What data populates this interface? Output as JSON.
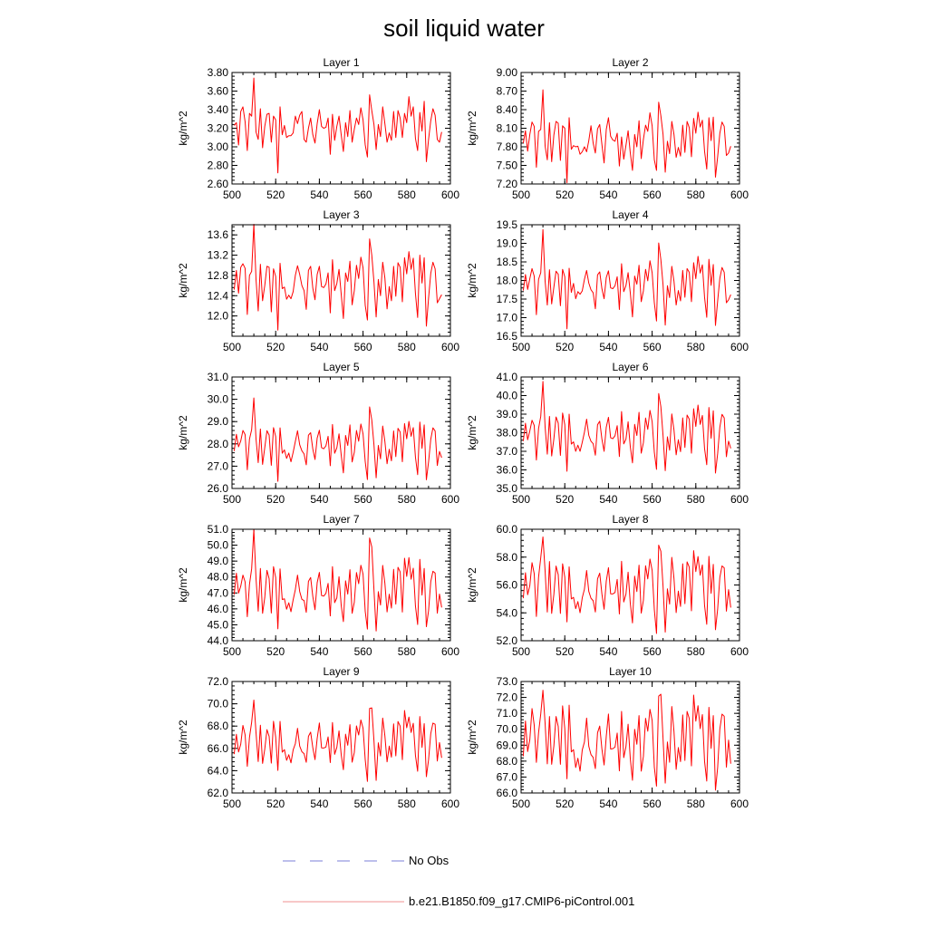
{
  "figure": {
    "title": "soil liquid water",
    "line_color": "#ff0000",
    "axis_color": "#000000"
  },
  "legend": {
    "items": [
      {
        "label": "No Obs",
        "color": "#7b7fd9",
        "style": "dashed"
      },
      {
        "label": "b.e21.B1850.f09_g17.CMIP6-piControl.001",
        "color": "#f09090",
        "style": "solid"
      }
    ]
  },
  "chart_data": [
    {
      "type": "line",
      "title": "Layer 1",
      "xlabel": "",
      "ylabel": "kg/m^2",
      "xlim": [
        500,
        600
      ],
      "ylim": [
        2.6,
        3.8
      ],
      "xticks": [
        "500",
        "520",
        "540",
        "560",
        "580",
        "600"
      ],
      "yticks": [
        "2.60",
        "2.80",
        "3.00",
        "3.20",
        "3.40",
        "3.60",
        "3.80"
      ],
      "x_start": 501,
      "x_step": 1,
      "values": [
        3.23,
        3.26,
        3.02,
        3.38,
        3.43,
        3.27,
        2.96,
        3.36,
        3.33,
        3.74,
        3.16,
        3.08,
        3.41,
        2.99,
        3.22,
        3.35,
        3.36,
        3.05,
        3.33,
        3.29,
        2.72,
        3.43,
        3.13,
        3.23,
        3.1,
        3.12,
        3.12,
        3.15,
        3.33,
        3.25,
        3.34,
        3.38,
        3.08,
        3.05,
        3.2,
        3.31,
        3.13,
        3.04,
        3.25,
        3.4,
        3.22,
        3.2,
        3.21,
        3.31,
        2.92,
        3.35,
        3.07,
        3.22,
        3.33,
        3.13,
        2.95,
        3.26,
        3.11,
        3.39,
        3.05,
        3.19,
        3.31,
        3.24,
        3.42,
        3.29,
        3.02,
        2.89,
        3.56,
        3.39,
        3.24,
        2.97,
        3.24,
        3.11,
        3.43,
        3.25,
        3.05,
        3.15,
        3.07,
        3.38,
        3.1,
        3.39,
        3.31,
        3.1,
        3.36,
        3.26,
        3.54,
        3.33,
        3.43,
        3.09,
        2.96,
        3.37,
        3.17,
        3.49,
        2.84,
        3.08,
        3.28,
        3.41,
        3.34,
        3.08,
        3.05,
        3.16
      ]
    },
    {
      "type": "line",
      "title": "Layer 2",
      "xlabel": "",
      "ylabel": "kg/m^2",
      "xlim": [
        500,
        600
      ],
      "ylim": [
        7.2,
        9.0
      ],
      "xticks": [
        "500",
        "520",
        "540",
        "560",
        "580",
        "600"
      ],
      "yticks": [
        "7.20",
        "7.50",
        "7.80",
        "8.10",
        "8.40",
        "8.70",
        "9.00"
      ],
      "x_start": 501,
      "x_step": 1,
      "values": [
        7.86,
        8.06,
        7.73,
        8.0,
        8.2,
        8.13,
        7.47,
        8.05,
        8.08,
        8.72,
        7.81,
        7.59,
        8.19,
        7.56,
        7.99,
        8.21,
        8.18,
        7.58,
        8.14,
        8.1,
        7.22,
        8.27,
        7.76,
        7.82,
        7.8,
        7.81,
        7.68,
        7.72,
        7.8,
        7.72,
        7.9,
        8.14,
        7.86,
        7.7,
        8.09,
        8.16,
        7.84,
        7.54,
        8.08,
        8.27,
        7.97,
        7.91,
        7.89,
        8.02,
        7.49,
        7.96,
        7.6,
        7.82,
        8.06,
        7.7,
        7.42,
        8.0,
        7.8,
        8.22,
        7.61,
        7.92,
        8.15,
        8.05,
        8.35,
        8.14,
        7.59,
        7.42,
        8.52,
        8.3,
        8.0,
        7.39,
        7.89,
        7.69,
        8.21,
        8.0,
        7.63,
        7.79,
        7.65,
        8.15,
        7.71,
        8.21,
        8.11,
        7.64,
        8.26,
        8.02,
        8.36,
        8.12,
        8.23,
        7.73,
        7.44,
        8.27,
        7.9,
        8.28,
        7.31,
        7.64,
        8.02,
        8.2,
        8.13,
        7.66,
        7.7,
        7.81
      ]
    },
    {
      "type": "line",
      "title": "Layer 3",
      "xlabel": "",
      "ylabel": "kg/m^2",
      "xlim": [
        500,
        600
      ],
      "ylim": [
        11.6,
        13.8
      ],
      "xticks": [
        "500",
        "520",
        "540",
        "560",
        "580",
        "600"
      ],
      "yticks": [
        "12.0",
        "12.4",
        "12.8",
        "13.2",
        "13.6"
      ],
      "x_start": 501,
      "x_step": 1,
      "values": [
        12.52,
        12.9,
        12.45,
        12.96,
        13.03,
        12.94,
        12.03,
        12.8,
        12.88,
        13.81,
        12.72,
        12.1,
        13.02,
        12.3,
        12.6,
        12.98,
        12.96,
        12.08,
        12.93,
        12.78,
        11.72,
        13.04,
        12.54,
        12.57,
        12.33,
        12.41,
        12.34,
        12.48,
        12.8,
        12.99,
        12.82,
        12.6,
        12.5,
        12.13,
        12.9,
        12.98,
        12.55,
        12.32,
        12.82,
        12.98,
        12.58,
        12.56,
        12.63,
        12.85,
        12.06,
        13.11,
        12.5,
        12.64,
        12.92,
        12.43,
        11.95,
        12.85,
        12.68,
        13.08,
        12.22,
        12.5,
        13.0,
        12.74,
        13.16,
        12.95,
        12.21,
        11.92,
        13.52,
        13.2,
        12.67,
        11.98,
        12.72,
        12.4,
        13.06,
        12.75,
        12.14,
        12.58,
        12.3,
        12.98,
        12.39,
        13.05,
        12.96,
        12.28,
        13.15,
        12.83,
        13.27,
        12.92,
        13.14,
        12.44,
        11.97,
        13.2,
        12.65,
        13.15,
        11.8,
        12.35,
        12.84,
        13.06,
        12.93,
        12.26,
        12.34,
        12.42
      ]
    },
    {
      "type": "line",
      "title": "Layer 4",
      "xlabel": "",
      "ylabel": "kg/m^2",
      "xlim": [
        500,
        600
      ],
      "ylim": [
        16.5,
        19.5
      ],
      "xticks": [
        "500",
        "520",
        "540",
        "560",
        "580",
        "600"
      ],
      "yticks": [
        "16.5",
        "17.0",
        "17.5",
        "18.0",
        "18.5",
        "19.0",
        "19.5"
      ],
      "x_start": 501,
      "x_step": 1,
      "values": [
        17.73,
        18.16,
        17.76,
        18.05,
        18.32,
        18.12,
        17.08,
        18.03,
        18.21,
        19.37,
        17.98,
        17.34,
        18.29,
        17.37,
        17.82,
        18.25,
        18.17,
        17.32,
        18.3,
        18.1,
        16.7,
        18.33,
        17.68,
        17.92,
        17.51,
        17.7,
        17.63,
        17.72,
        18.03,
        18.27,
        17.93,
        17.75,
        17.67,
        17.24,
        18.15,
        18.23,
        17.78,
        17.51,
        18.08,
        18.26,
        17.8,
        17.78,
        17.86,
        18.1,
        17.22,
        18.45,
        17.7,
        17.86,
        18.21,
        17.67,
        17.02,
        18.12,
        17.9,
        18.41,
        17.43,
        17.72,
        18.3,
        17.99,
        18.53,
        18.21,
        17.4,
        16.91,
        19.01,
        18.56,
        17.88,
        16.8,
        17.86,
        17.54,
        18.38,
        17.98,
        17.34,
        17.73,
        17.45,
        18.27,
        17.55,
        18.32,
        18.22,
        17.43,
        18.48,
        18.05,
        18.65,
        18.2,
        18.42,
        17.55,
        17.01,
        18.57,
        17.87,
        18.43,
        16.79,
        17.45,
        18.06,
        18.35,
        18.22,
        17.4,
        17.48,
        17.62
      ]
    },
    {
      "type": "line",
      "title": "Layer 5",
      "xlabel": "",
      "ylabel": "kg/m^2",
      "xlim": [
        500,
        600
      ],
      "ylim": [
        26.0,
        31.0
      ],
      "xticks": [
        "500",
        "520",
        "540",
        "560",
        "580",
        "600"
      ],
      "yticks": [
        "26.0",
        "27.0",
        "28.0",
        "29.0",
        "30.0",
        "31.0"
      ],
      "x_start": 501,
      "x_step": 1,
      "values": [
        27.68,
        28.43,
        27.87,
        28.13,
        28.6,
        28.42,
        26.84,
        28.21,
        28.64,
        30.06,
        28.22,
        27.16,
        28.67,
        27.08,
        27.83,
        28.59,
        28.4,
        27.04,
        28.73,
        28.33,
        26.32,
        28.72,
        27.58,
        27.73,
        27.35,
        27.59,
        27.2,
        27.62,
        28.11,
        28.59,
        27.96,
        27.69,
        27.55,
        27.06,
        28.39,
        28.5,
        27.77,
        27.3,
        28.26,
        28.61,
        27.83,
        27.78,
        27.91,
        28.34,
        27.02,
        28.87,
        27.58,
        27.82,
        28.45,
        27.5,
        26.7,
        28.38,
        27.93,
        28.85,
        27.19,
        27.62,
        28.6,
        28.12,
        28.89,
        28.45,
        27.2,
        26.4,
        29.66,
        29.07,
        27.96,
        26.48,
        27.93,
        27.33,
        28.8,
        28.11,
        27.11,
        27.76,
        27.24,
        28.58,
        27.43,
        28.7,
        28.53,
        27.2,
        28.91,
        28.23,
        29.01,
        28.34,
        28.73,
        27.4,
        26.62,
        28.98,
        27.8,
        28.85,
        26.39,
        27.19,
        28.2,
        28.72,
        28.58,
        27.03,
        27.66,
        27.38
      ]
    },
    {
      "type": "line",
      "title": "Layer 6",
      "xlabel": "",
      "ylabel": "kg/m^2",
      "xlim": [
        500,
        600
      ],
      "ylim": [
        35.0,
        41.0
      ],
      "xticks": [
        "500",
        "520",
        "540",
        "560",
        "580",
        "600"
      ],
      "yticks": [
        "35.0",
        "36.0",
        "37.0",
        "38.0",
        "39.0",
        "40.0",
        "41.0"
      ],
      "x_start": 501,
      "x_step": 1,
      "values": [
        37.55,
        38.51,
        37.62,
        38.1,
        38.67,
        38.4,
        36.53,
        38.23,
        38.88,
        40.76,
        38.3,
        36.85,
        38.88,
        36.75,
        37.66,
        38.85,
        38.52,
        36.78,
        39.06,
        38.44,
        35.93,
        39.0,
        37.39,
        37.51,
        37.0,
        37.33,
        37.0,
        37.48,
        38.03,
        38.73,
        37.86,
        37.54,
        37.41,
        36.79,
        38.43,
        38.62,
        37.66,
        37.0,
        38.3,
        38.83,
        37.73,
        37.68,
        37.84,
        38.38,
        36.72,
        39.14,
        37.4,
        37.65,
        38.59,
        37.25,
        36.38,
        38.45,
        37.85,
        39.1,
        36.9,
        37.46,
        38.79,
        38.18,
        39.2,
        38.6,
        36.95,
        36.03,
        40.11,
        39.4,
        37.84,
        35.96,
        37.78,
        37.06,
        39.01,
        38.15,
        36.81,
        37.62,
        36.98,
        38.8,
        37.21,
        38.95,
        38.73,
        36.9,
        39.29,
        38.34,
        39.49,
        38.45,
        38.93,
        37.15,
        36.28,
        39.36,
        37.7,
        39.18,
        35.83,
        36.88,
        38.3,
        38.99,
        38.8,
        36.71,
        37.55,
        37.16
      ]
    },
    {
      "type": "line",
      "title": "Layer 7",
      "xlabel": "",
      "ylabel": "kg/m^2",
      "xlim": [
        500,
        600
      ],
      "ylim": [
        44.0,
        51.0
      ],
      "xticks": [
        "500",
        "520",
        "540",
        "560",
        "580",
        "600"
      ],
      "yticks": [
        "44.0",
        "45.0",
        "46.0",
        "47.0",
        "48.0",
        "49.0",
        "50.0",
        "51.0"
      ],
      "x_start": 501,
      "x_step": 1,
      "values": [
        46.9,
        48.24,
        46.99,
        47.42,
        48.12,
        47.7,
        45.51,
        47.53,
        48.52,
        50.98,
        47.9,
        45.86,
        48.54,
        45.72,
        46.71,
        48.42,
        47.9,
        45.74,
        48.65,
        47.97,
        44.75,
        48.51,
        46.59,
        46.63,
        45.98,
        46.38,
        45.82,
        46.57,
        47.21,
        48.12,
        47.09,
        46.6,
        46.52,
        45.78,
        47.73,
        47.97,
        46.78,
        45.95,
        47.64,
        48.29,
        46.84,
        46.8,
        46.98,
        47.6,
        45.56,
        48.65,
        46.39,
        46.69,
        48.02,
        46.22,
        45.2,
        47.76,
        46.93,
        48.46,
        45.72,
        46.42,
        48.28,
        47.58,
        48.74,
        48.18,
        45.84,
        44.73,
        50.45,
        49.89,
        47.2,
        44.61,
        47.08,
        46.24,
        48.73,
        47.61,
        45.81,
        46.92,
        46.05,
        48.48,
        46.3,
        48.61,
        48.32,
        45.8,
        49.18,
        48.04,
        49.22,
        47.86,
        48.55,
        46.17,
        45.02,
        49.11,
        46.87,
        48.54,
        44.88,
        45.89,
        47.71,
        48.36,
        48.25,
        45.73,
        46.93,
        46.09
      ]
    },
    {
      "type": "line",
      "title": "Layer 8",
      "xlabel": "",
      "ylabel": "kg/m^2",
      "xlim": [
        500,
        600
      ],
      "ylim": [
        52.0,
        60.0
      ],
      "xticks": [
        "500",
        "520",
        "540",
        "560",
        "580",
        "600"
      ],
      "yticks": [
        "52.0",
        "54.0",
        "56.0",
        "58.0",
        "60.0"
      ],
      "x_start": 501,
      "x_step": 1,
      "values": [
        55.05,
        56.88,
        55.3,
        55.96,
        57.6,
        56.82,
        53.74,
        56.56,
        57.96,
        59.45,
        56.99,
        54.06,
        57.68,
        53.96,
        55.32,
        57.36,
        56.75,
        53.96,
        57.52,
        56.57,
        53.35,
        57.3,
        55.0,
        55.11,
        54.3,
        54.81,
        54.01,
        55.08,
        55.7,
        57.04,
        55.54,
        55.05,
        54.87,
        54.06,
        56.44,
        56.85,
        55.36,
        54.26,
        56.28,
        57.24,
        55.37,
        55.36,
        55.46,
        56.4,
        53.92,
        57.7,
        54.78,
        55.33,
        56.92,
        54.68,
        53.28,
        56.63,
        55.53,
        57.42,
        53.98,
        54.9,
        57.38,
        56.44,
        57.86,
        57.05,
        54.23,
        52.52,
        58.86,
        58.42,
        55.9,
        52.62,
        55.72,
        54.63,
        57.98,
        56.47,
        54.02,
        55.56,
        54.46,
        57.52,
        54.66,
        57.66,
        57.28,
        54.15,
        58.46,
        56.96,
        58.04,
        56.7,
        57.44,
        54.53,
        53.18,
        58.06,
        55.4,
        57.48,
        52.79,
        54.27,
        56.55,
        57.37,
        57.23,
        54.12,
        55.67,
        54.38
      ]
    },
    {
      "type": "line",
      "title": "Layer 9",
      "xlabel": "",
      "ylabel": "kg/m^2",
      "xlim": [
        500,
        600
      ],
      "ylim": [
        62.0,
        72.0
      ],
      "xticks": [
        "500",
        "520",
        "540",
        "560",
        "580",
        "600"
      ],
      "yticks": [
        "62.0",
        "64.0",
        "66.0",
        "68.0",
        "70.0",
        "72.0"
      ],
      "x_start": 501,
      "x_step": 1,
      "values": [
        65.48,
        67.26,
        65.68,
        66.37,
        68.06,
        67.22,
        64.39,
        66.98,
        68.35,
        70.33,
        67.4,
        64.82,
        68.08,
        64.65,
        65.93,
        67.68,
        67.08,
        64.68,
        68.43,
        67.02,
        64.02,
        68.42,
        65.66,
        65.89,
        64.93,
        65.43,
        64.7,
        65.87,
        66.42,
        67.8,
        66.2,
        65.7,
        65.53,
        64.75,
        67.08,
        67.46,
        66.06,
        64.99,
        66.89,
        68.28,
        66.05,
        66.03,
        66.12,
        67.03,
        64.73,
        68.32,
        65.47,
        66.09,
        67.57,
        65.44,
        64.09,
        67.27,
        66.28,
        68.13,
        64.76,
        65.63,
        68.02,
        67.2,
        68.55,
        67.81,
        64.98,
        63.04,
        69.58,
        69.63,
        66.69,
        63.13,
        66.5,
        65.32,
        68.72,
        67.13,
        64.79,
        66.21,
        65.21,
        68.2,
        65.33,
        68.41,
        68.0,
        64.99,
        69.4,
        67.85,
        68.81,
        67.43,
        68.25,
        65.36,
        63.95,
        68.86,
        66.09,
        68.22,
        63.46,
        64.98,
        67.32,
        68.27,
        68.16,
        64.87,
        66.52,
        65.15
      ]
    },
    {
      "type": "line",
      "title": "Layer 10",
      "xlabel": "",
      "ylabel": "kg/m^2",
      "xlim": [
        500,
        600
      ],
      "ylim": [
        66.0,
        73.0
      ],
      "xticks": [
        "500",
        "520",
        "540",
        "560",
        "580",
        "600"
      ],
      "yticks": [
        "66.0",
        "67.0",
        "68.0",
        "69.0",
        "70.0",
        "71.0",
        "72.0",
        "73.0"
      ],
      "x_start": 501,
      "x_step": 1,
      "values": [
        68.31,
        70.52,
        68.6,
        69.35,
        71.3,
        70.27,
        67.92,
        69.78,
        70.96,
        72.45,
        70.36,
        67.83,
        70.8,
        67.8,
        68.95,
        70.8,
        70.18,
        67.8,
        71.47,
        70.05,
        66.89,
        71.51,
        68.58,
        68.72,
        67.6,
        68.18,
        67.37,
        68.7,
        69.2,
        70.7,
        68.93,
        68.41,
        68.23,
        67.53,
        69.78,
        70.2,
        68.77,
        67.76,
        69.56,
        70.96,
        68.76,
        68.78,
        68.88,
        69.76,
        67.39,
        71.12,
        68.22,
        68.9,
        70.32,
        68.16,
        66.8,
        70.0,
        69.06,
        70.86,
        67.37,
        68.3,
        70.69,
        69.88,
        71.25,
        70.56,
        67.62,
        66.43,
        72.08,
        72.2,
        69.4,
        66.62,
        69.2,
        67.93,
        71.43,
        69.86,
        67.48,
        68.85,
        67.97,
        70.9,
        68.04,
        71.12,
        70.68,
        67.7,
        72.15,
        70.51,
        71.48,
        70.04,
        70.92,
        67.99,
        66.75,
        71.38,
        68.8,
        70.86,
        66.18,
        67.6,
        70.02,
        70.95,
        70.82,
        67.62,
        69.32,
        67.84
      ]
    }
  ]
}
